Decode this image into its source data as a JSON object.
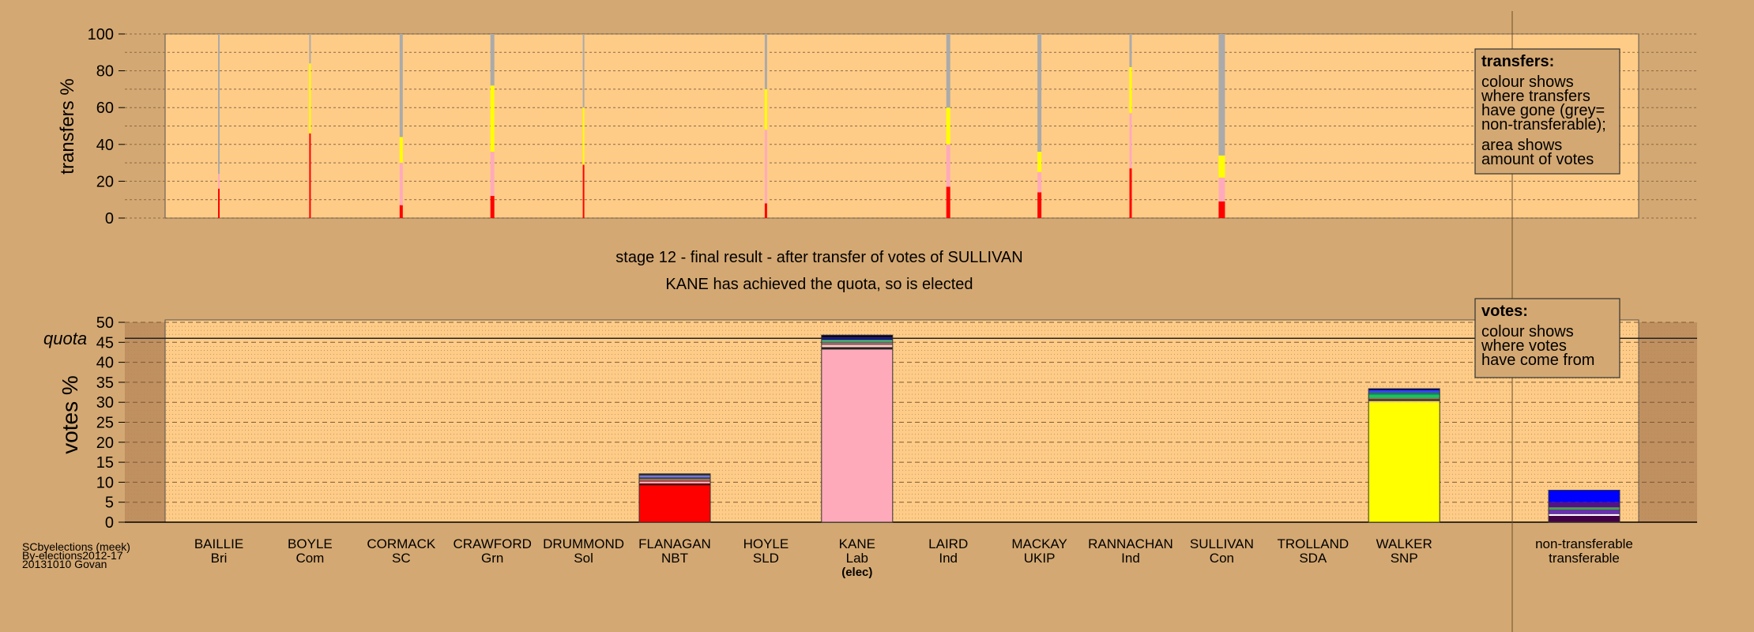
{
  "colors": {
    "background": "#d4a872",
    "plot_bg": "#ffcc88",
    "shade": "#c09060",
    "grey": "#aaaaaa",
    "pink": "#ffaabb",
    "red": "#ff0000",
    "yellow": "#ffff00",
    "blue": "#0000ff"
  },
  "header": {
    "stage_line": "stage 12 - final result - after transfer of votes of SULLIVAN",
    "result_line": "KANE has achieved the quota, so is elected"
  },
  "footer": {
    "line1": "SCbyelections (meek)",
    "line2": "By-elections2012-17",
    "line3": "20131010 Govan"
  },
  "legends": {
    "transfers": {
      "title": "transfers:",
      "lines": [
        "colour shows",
        "where transfers",
        "have gone (grey=",
        "non-transferable);",
        "area shows",
        "amount of votes"
      ]
    },
    "votes": {
      "title": "votes:",
      "lines": [
        "colour shows",
        "where votes",
        "have come from"
      ]
    }
  },
  "chart_data": [
    {
      "type": "bar",
      "chart": "transfers",
      "ylabel": "transfers %",
      "ylim": [
        0,
        100
      ],
      "yticks": [
        0,
        20,
        40,
        60,
        80,
        100
      ],
      "categories": [
        "BAILLIE",
        "BOYLE",
        "CORMACK",
        "CRAWFORD",
        "DRUMMOND",
        "FLANAGAN",
        "HOYLE",
        "KANE",
        "LAIRD",
        "MACKAY",
        "RANNACHAN",
        "SULLIVAN",
        "TROLLAND",
        "WALKER"
      ],
      "series": [
        {
          "color": "#ff0000",
          "values": [
            16,
            46,
            7,
            12,
            29,
            0,
            8,
            0,
            17,
            14,
            27,
            9,
            0,
            0
          ]
        },
        {
          "color": "#ffaabb",
          "values": [
            8,
            0,
            23,
            24,
            0,
            0,
            40,
            0,
            23,
            11,
            30,
            13,
            0,
            0
          ]
        },
        {
          "color": "#ffff00",
          "values": [
            0,
            38,
            14,
            36,
            31,
            0,
            22,
            0,
            20,
            11,
            25,
            12,
            0,
            0
          ]
        },
        {
          "color": "#aaaaaa",
          "values": [
            76,
            16,
            56,
            28,
            40,
            0,
            30,
            0,
            40,
            64,
            18,
            66,
            0,
            0
          ]
        }
      ]
    },
    {
      "type": "bar",
      "chart": "votes",
      "ylabel": "votes %",
      "ylim": [
        0,
        50
      ],
      "yticks": [
        0,
        5,
        10,
        15,
        20,
        25,
        30,
        35,
        40,
        45,
        50
      ],
      "quota": 46,
      "quota_label": "quota",
      "categories": [
        "BAILLIE",
        "BOYLE",
        "CORMACK",
        "CRAWFORD",
        "DRUMMOND",
        "FLANAGAN",
        "HOYLE",
        "KANE",
        "LAIRD",
        "MACKAY",
        "RANNACHAN",
        "SULLIVAN",
        "TROLLAND",
        "WALKER",
        "non-transferable"
      ],
      "parties": [
        "Bri",
        "Com",
        "SC",
        "Grn",
        "Sol",
        "NBT",
        "SLD",
        "Lab",
        "Ind",
        "UKIP",
        "Ind",
        "Con",
        "SDA",
        "SNP",
        "transferable"
      ],
      "elected_marker": "(elec)",
      "stacks": [
        [],
        [],
        [],
        [],
        [],
        [
          {
            "color": "#ff0000",
            "value": 9.2
          },
          {
            "color": "#550000",
            "value": 0.5
          },
          {
            "color": "#ffaabb",
            "value": 0.4
          },
          {
            "color": "#aa4444",
            "value": 0.4
          },
          {
            "color": "#777777",
            "value": 0.4
          },
          {
            "color": "#442200",
            "value": 0.3
          },
          {
            "color": "#6677ff",
            "value": 0.5
          },
          {
            "color": "#222222",
            "value": 0.4
          }
        ],
        [],
        [
          {
            "color": "#ffaabb",
            "value": 43.2
          },
          {
            "color": "#222222",
            "value": 0.6
          },
          {
            "color": "#ffcccc",
            "value": 0.5
          },
          {
            "color": "#996666",
            "value": 0.4
          },
          {
            "color": "#666666",
            "value": 0.5
          },
          {
            "color": "#33bb66",
            "value": 0.4
          },
          {
            "color": "#0000cc",
            "value": 0.6
          },
          {
            "color": "#000033",
            "value": 0.6
          }
        ],
        [],
        [],
        [],
        [],
        [],
        [
          {
            "color": "#ffff00",
            "value": 29.9
          },
          {
            "color": "#ffdd55",
            "value": 0.4
          },
          {
            "color": "#333333",
            "value": 0.5
          },
          {
            "color": "#887744",
            "value": 0.4
          },
          {
            "color": "#00cc66",
            "value": 0.7
          },
          {
            "color": "#227744",
            "value": 0.5
          },
          {
            "color": "#3344ff",
            "value": 0.6
          },
          {
            "color": "#000066",
            "value": 0.4
          }
        ],
        [
          {
            "color": "#440044",
            "value": 1.6
          },
          {
            "color": "#ffffff",
            "value": 0.4
          },
          {
            "color": "#6633aa",
            "value": 1.2
          },
          {
            "color": "#33aa33",
            "value": 0.5
          },
          {
            "color": "#551188",
            "value": 1.3
          },
          {
            "color": "#0000ff",
            "value": 3.0
          }
        ]
      ]
    }
  ]
}
